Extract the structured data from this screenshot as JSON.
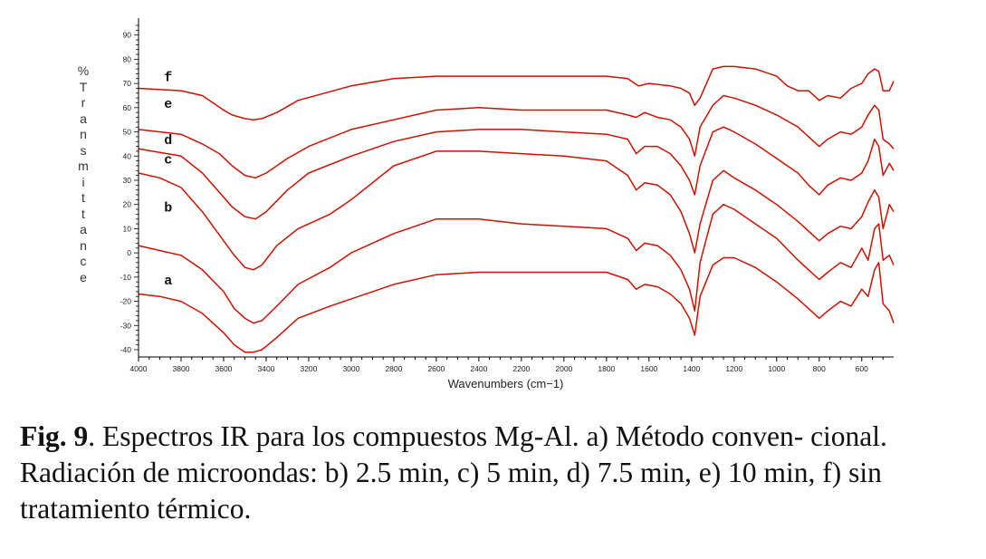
{
  "caption": {
    "bold": "Fig. 9",
    "text": ". Espectros IR para los compuestos Mg-Al. a) Método conven- cional. Radiación de microondas: b) 2.5 min, c) 5 min, d) 7.5 min, e) 10 min, f) sin tratamiento térmico."
  },
  "chart_data": {
    "type": "line",
    "title": "",
    "xlabel": "Wavenumbers (cm−1)",
    "ylabel": "% Transmittance",
    "ylabel_chars": [
      "%",
      "T",
      "r",
      "a",
      "n",
      "s",
      "m",
      "i",
      "t",
      "t",
      "a",
      "n",
      "c",
      "e"
    ],
    "xlim": [
      4000,
      450
    ],
    "ylim": [
      -43,
      97
    ],
    "x_reversed": true,
    "grid": false,
    "line_color": "#cc1100",
    "x_ticks": [
      4000,
      3800,
      3600,
      3400,
      3200,
      3000,
      2800,
      2600,
      2400,
      2200,
      2000,
      1800,
      1600,
      1400,
      1200,
      1000,
      800,
      600
    ],
    "y_ticks": [
      90,
      80,
      70,
      60,
      50,
      40,
      30,
      20,
      10,
      0,
      -10,
      -20,
      -30,
      -40
    ],
    "series": [
      {
        "name": "f",
        "label_at": [
          3880,
          71
        ],
        "x": [
          4000,
          3800,
          3700,
          3600,
          3560,
          3500,
          3460,
          3420,
          3350,
          3250,
          3000,
          2800,
          2600,
          2400,
          2200,
          2000,
          1800,
          1700,
          1650,
          1600,
          1500,
          1450,
          1410,
          1385,
          1360,
          1300,
          1250,
          1200,
          1100,
          1000,
          950,
          900,
          850,
          800,
          760,
          700,
          650,
          600,
          570,
          540,
          520,
          500,
          470,
          450
        ],
        "y": [
          68,
          67,
          65,
          59,
          57,
          55.5,
          55,
          55.5,
          58,
          63,
          69,
          72,
          73,
          73,
          73,
          73,
          73,
          72,
          69,
          70,
          69,
          68,
          66,
          61,
          64,
          76,
          77,
          77,
          76,
          73,
          69,
          67,
          67,
          63,
          65,
          64,
          68,
          70,
          74,
          76,
          75,
          67,
          67,
          71
        ]
      },
      {
        "name": "e",
        "label_at": [
          3880,
          60
        ],
        "x": [
          4000,
          3800,
          3700,
          3620,
          3560,
          3500,
          3450,
          3400,
          3300,
          3200,
          3000,
          2800,
          2600,
          2400,
          2200,
          2000,
          1800,
          1700,
          1660,
          1620,
          1560,
          1500,
          1450,
          1410,
          1385,
          1360,
          1300,
          1250,
          1200,
          1100,
          1000,
          900,
          850,
          800,
          760,
          700,
          650,
          600,
          570,
          540,
          520,
          500,
          470,
          450
        ],
        "y": [
          51,
          49,
          45,
          41,
          36,
          32,
          31,
          33,
          39,
          44,
          51,
          55,
          59,
          60,
          59,
          59,
          59,
          57,
          56,
          58,
          56,
          55,
          52,
          47,
          40,
          52,
          61,
          65,
          64,
          61,
          57,
          52,
          48,
          44,
          47,
          50,
          49,
          52,
          57,
          61,
          59,
          47,
          45,
          43
        ]
      },
      {
        "name": "d",
        "label_at": [
          3880,
          45
        ],
        "x": [
          4000,
          3800,
          3700,
          3620,
          3560,
          3500,
          3450,
          3400,
          3300,
          3200,
          3000,
          2800,
          2600,
          2400,
          2200,
          2000,
          1800,
          1700,
          1660,
          1620,
          1560,
          1500,
          1450,
          1410,
          1385,
          1360,
          1300,
          1250,
          1200,
          1100,
          1000,
          900,
          850,
          800,
          760,
          700,
          650,
          600,
          570,
          540,
          520,
          500,
          470,
          450
        ],
        "y": [
          43,
          40,
          33,
          25,
          19,
          15,
          14,
          17,
          26,
          33,
          40,
          46,
          50,
          51,
          51,
          50,
          49,
          47,
          41,
          44,
          44,
          41,
          36,
          30,
          24,
          36,
          50,
          52,
          50,
          45,
          39,
          33,
          28,
          24,
          28,
          31,
          30,
          33,
          38,
          47,
          44,
          32,
          37,
          34
        ]
      },
      {
        "name": "c",
        "label_at": [
          3880,
          37
        ],
        "x": [
          4000,
          3900,
          3800,
          3700,
          3600,
          3550,
          3500,
          3460,
          3420,
          3350,
          3250,
          3100,
          3000,
          2800,
          2600,
          2400,
          2200,
          2000,
          1800,
          1700,
          1660,
          1620,
          1560,
          1500,
          1450,
          1410,
          1385,
          1360,
          1300,
          1250,
          1200,
          1100,
          1000,
          900,
          850,
          800,
          760,
          700,
          650,
          600,
          570,
          540,
          520,
          500,
          470,
          450
        ],
        "y": [
          33,
          31,
          27,
          17,
          5,
          -1,
          -6,
          -7,
          -5,
          3,
          10,
          16,
          22,
          36,
          42,
          42,
          41,
          40,
          38,
          32,
          26,
          29,
          28,
          24,
          17,
          8,
          0,
          12,
          30,
          34,
          31,
          26,
          20,
          13,
          9,
          5,
          8,
          11,
          10,
          15,
          21,
          26,
          23,
          10,
          20,
          17
        ]
      },
      {
        "name": "b",
        "label_at": [
          3880,
          17
        ],
        "x": [
          4000,
          3900,
          3800,
          3700,
          3600,
          3550,
          3500,
          3460,
          3420,
          3350,
          3250,
          3100,
          3000,
          2800,
          2600,
          2400,
          2200,
          2000,
          1800,
          1700,
          1660,
          1620,
          1560,
          1500,
          1450,
          1410,
          1385,
          1360,
          1300,
          1250,
          1200,
          1100,
          1000,
          900,
          850,
          800,
          760,
          700,
          650,
          600,
          570,
          540,
          520,
          500,
          470,
          450
        ],
        "y": [
          3,
          1,
          -1,
          -7,
          -16,
          -23,
          -27,
          -29,
          -28,
          -22,
          -13,
          -6,
          0,
          8,
          14,
          14,
          12,
          11,
          10,
          6,
          1,
          4,
          3,
          -1,
          -7,
          -15,
          -24,
          -4,
          16,
          20,
          18,
          12,
          6,
          -3,
          -7,
          -11,
          -8,
          -4,
          -6,
          2,
          -3,
          10,
          12,
          -3,
          -1,
          -5
        ]
      },
      {
        "name": "a",
        "label_at": [
          3880,
          -13
        ],
        "x": [
          4000,
          3900,
          3800,
          3700,
          3600,
          3550,
          3500,
          3460,
          3420,
          3350,
          3250,
          3100,
          3000,
          2800,
          2600,
          2400,
          2200,
          2000,
          1800,
          1700,
          1660,
          1620,
          1560,
          1500,
          1450,
          1410,
          1385,
          1360,
          1300,
          1250,
          1200,
          1100,
          1000,
          900,
          850,
          800,
          760,
          700,
          650,
          600,
          570,
          540,
          520,
          500,
          470,
          450
        ],
        "y": [
          -17,
          -18,
          -20,
          -25,
          -33,
          -38,
          -41,
          -41,
          -40,
          -35,
          -27,
          -22,
          -19,
          -13,
          -9,
          -8,
          -8,
          -8,
          -8,
          -11,
          -15,
          -13,
          -14,
          -17,
          -21,
          -27,
          -34,
          -18,
          -5,
          -2,
          -2,
          -6,
          -12,
          -19,
          -23,
          -27,
          -24,
          -20,
          -22,
          -15,
          -18,
          -7,
          -4,
          -21,
          -24,
          -29
        ]
      }
    ]
  }
}
